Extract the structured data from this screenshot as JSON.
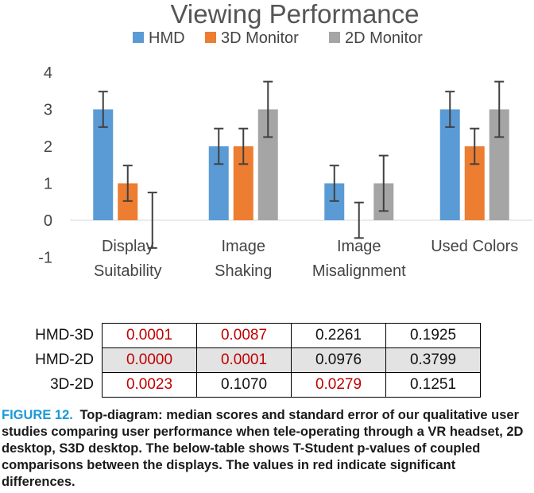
{
  "chart_data": {
    "type": "bar",
    "title": "Viewing Performance",
    "categories": [
      [
        "Display",
        "Suitability"
      ],
      [
        "Image",
        "Shaking"
      ],
      [
        "Image",
        "Misalignment"
      ],
      [
        "Used Colors"
      ]
    ],
    "series": [
      {
        "name": "HMD",
        "values": [
          3,
          2,
          1,
          3
        ],
        "errors": [
          0.48,
          0.48,
          0.48,
          0.48
        ]
      },
      {
        "name": "3D Monitor",
        "values": [
          1,
          2,
          0,
          2
        ],
        "errors": [
          0.48,
          0.48,
          0.48,
          0.48
        ]
      },
      {
        "name": "2D Monitor",
        "values": [
          0,
          3,
          1,
          3
        ],
        "errors": [
          0.75,
          0.75,
          0.75,
          0.75
        ]
      }
    ],
    "ylim": [
      -1,
      4
    ],
    "yticks": [
      "-1",
      "0",
      "1",
      "2",
      "3",
      "4"
    ],
    "grid": false,
    "legend_position": "top",
    "colors": {
      "HMD": "#5b9bd5",
      "3D Monitor": "#ed7d31",
      "2D Monitor": "#a5a5a5",
      "errorbar": "#404040"
    }
  },
  "pvalue_table": {
    "rows": [
      {
        "label": "HMD-3D",
        "cells": [
          {
            "v": "0.0001",
            "sig": true
          },
          {
            "v": "0.0087",
            "sig": true
          },
          {
            "v": "0.2261",
            "sig": false
          },
          {
            "v": "0.1925",
            "sig": false
          }
        ]
      },
      {
        "label": "HMD-2D",
        "cells": [
          {
            "v": "0.0000",
            "sig": true
          },
          {
            "v": "0.0001",
            "sig": true
          },
          {
            "v": "0.0976",
            "sig": false
          },
          {
            "v": "0.3799",
            "sig": false
          }
        ]
      },
      {
        "label": "3D-2D",
        "cells": [
          {
            "v": "0.0023",
            "sig": true
          },
          {
            "v": "0.1070",
            "sig": false
          },
          {
            "v": "0.0279",
            "sig": true
          },
          {
            "v": "0.1251",
            "sig": false
          }
        ]
      }
    ],
    "significant_color": "#c00000"
  },
  "caption": {
    "label": "FIGURE 12.",
    "text": "Top-diagram: median scores and standard error of our qualitative user studies comparing user performance when tele-operating through a VR headset, 2D desktop, S3D desktop. The below-table shows T-Student p-values of coupled comparisons between the displays. The values in red indicate significant differences."
  }
}
